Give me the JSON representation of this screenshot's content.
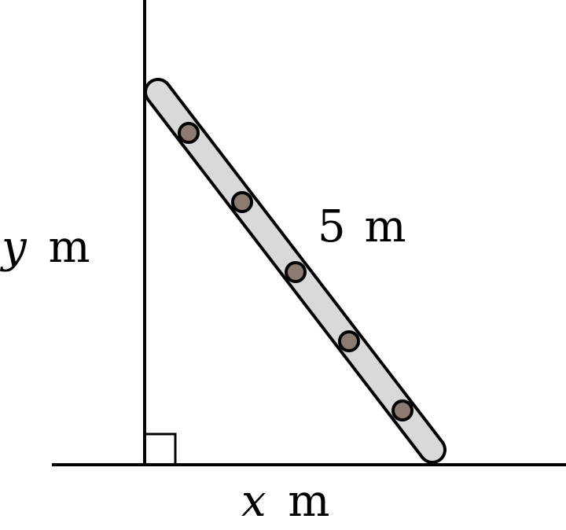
{
  "labels": {
    "hypotenuse_value": "5",
    "hypotenuse_unit": "m",
    "height_var": "y",
    "height_unit": "m",
    "base_var": "x",
    "base_unit": "m"
  },
  "colors": {
    "line": "#000000",
    "ladder_fill": "#d9d9d9",
    "rung_fill": "#8c7b70",
    "background": "#ffffff"
  },
  "ladder": {
    "rung_count": 5
  }
}
